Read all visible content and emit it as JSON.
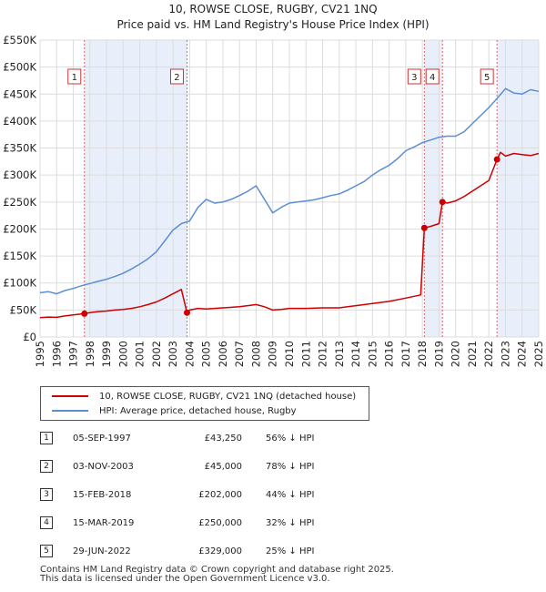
{
  "chart_data": {
    "type": "line",
    "title": "10, ROWSE CLOSE, RUGBY, CV21 1NQ",
    "subtitle": "Price paid vs. HM Land Registry's House Price Index (HPI)",
    "xlabel": "",
    "ylabel": "",
    "xlim": [
      1995,
      2025
    ],
    "ylim": [
      0,
      550000
    ],
    "x_ticks": [
      "1995",
      "1996",
      "1997",
      "1998",
      "1999",
      "2000",
      "2001",
      "2002",
      "2003",
      "2004",
      "2005",
      "2006",
      "2007",
      "2008",
      "2009",
      "2010",
      "2011",
      "2012",
      "2013",
      "2014",
      "2015",
      "2016",
      "2017",
      "2018",
      "2019",
      "2020",
      "2021",
      "2022",
      "2023",
      "2024",
      "2025"
    ],
    "y_ticks": [
      {
        "value": 0,
        "label": "£0"
      },
      {
        "value": 50000,
        "label": "£50K"
      },
      {
        "value": 100000,
        "label": "£100K"
      },
      {
        "value": 150000,
        "label": "£150K"
      },
      {
        "value": 200000,
        "label": "£200K"
      },
      {
        "value": 250000,
        "label": "£250K"
      },
      {
        "value": 300000,
        "label": "£300K"
      },
      {
        "value": 350000,
        "label": "£350K"
      },
      {
        "value": 400000,
        "label": "£400K"
      },
      {
        "value": 450000,
        "label": "£450K"
      },
      {
        "value": 500000,
        "label": "£500K"
      },
      {
        "value": 550000,
        "label": "£550K"
      }
    ],
    "series": [
      {
        "name": "10, ROWSE CLOSE, RUGBY, CV21 1NQ (detached house)",
        "color": "#cc0000",
        "x": [
          1995.0,
          1995.5,
          1996.0,
          1996.5,
          1997.0,
          1997.67,
          1998.0,
          1998.5,
          1999.0,
          1999.5,
          2000.0,
          2000.5,
          2001.0,
          2001.5,
          2002.0,
          2002.5,
          2003.0,
          2003.5,
          2003.84,
          2004.0,
          2004.5,
          2005.0,
          2006.0,
          2007.0,
          2007.5,
          2008.0,
          2008.5,
          2009.0,
          2009.5,
          2010.0,
          2011.0,
          2012.0,
          2013.0,
          2014.0,
          2015.0,
          2016.0,
          2017.0,
          2017.9,
          2018.12,
          2018.5,
          2019.0,
          2019.21,
          2019.5,
          2020.0,
          2020.5,
          2021.0,
          2021.5,
          2022.0,
          2022.49,
          2022.7,
          2023.0,
          2023.5,
          2024.0,
          2024.5,
          2025.0
        ],
        "values": [
          36000,
          37000,
          36500,
          39000,
          41000,
          43250,
          45000,
          47000,
          48000,
          50000,
          51000,
          53000,
          56000,
          60000,
          65000,
          72000,
          80000,
          88000,
          45000,
          50000,
          53000,
          52000,
          54000,
          56000,
          58000,
          60000,
          56000,
          50000,
          51000,
          53000,
          53000,
          54000,
          54000,
          58000,
          62000,
          66000,
          72000,
          78000,
          202000,
          205000,
          210000,
          250000,
          248000,
          252000,
          260000,
          270000,
          280000,
          290000,
          329000,
          342000,
          335000,
          340000,
          338000,
          336000,
          340000
        ]
      },
      {
        "name": "HPI: Average price, detached house, Rugby",
        "color": "#5b8fd1",
        "x": [
          1995.0,
          1995.5,
          1996.0,
          1996.5,
          1997.0,
          1997.5,
          1998.0,
          1998.5,
          1999.0,
          1999.5,
          2000.0,
          2000.5,
          2001.0,
          2001.5,
          2002.0,
          2002.5,
          2003.0,
          2003.5,
          2004.0,
          2004.5,
          2005.0,
          2005.5,
          2006.0,
          2006.5,
          2007.0,
          2007.5,
          2008.0,
          2008.5,
          2009.0,
          2009.5,
          2010.0,
          2010.5,
          2011.0,
          2011.5,
          2012.0,
          2012.5,
          2013.0,
          2013.5,
          2014.0,
          2014.5,
          2015.0,
          2015.5,
          2016.0,
          2016.5,
          2017.0,
          2017.5,
          2018.0,
          2018.5,
          2019.0,
          2019.5,
          2020.0,
          2020.5,
          2021.0,
          2021.5,
          2022.0,
          2022.5,
          2023.0,
          2023.5,
          2024.0,
          2024.5,
          2025.0
        ],
        "values": [
          82000,
          84000,
          80000,
          86000,
          90000,
          95000,
          99000,
          103000,
          107000,
          112000,
          118000,
          126000,
          135000,
          145000,
          158000,
          178000,
          198000,
          210000,
          215000,
          240000,
          255000,
          248000,
          250000,
          255000,
          262000,
          270000,
          280000,
          255000,
          230000,
          240000,
          248000,
          250000,
          252000,
          254000,
          258000,
          262000,
          265000,
          272000,
          280000,
          288000,
          300000,
          310000,
          318000,
          330000,
          345000,
          352000,
          360000,
          365000,
          370000,
          372000,
          372000,
          380000,
          395000,
          410000,
          425000,
          442000,
          460000,
          452000,
          450000,
          458000,
          455000
        ]
      }
    ],
    "markers": [
      {
        "id": "1",
        "x": 1997.67,
        "value": 43250
      },
      {
        "id": "2",
        "x": 2003.84,
        "value": 45000
      },
      {
        "id": "3",
        "x": 2018.12,
        "value": 202000
      },
      {
        "id": "4",
        "x": 2019.21,
        "value": 250000
      },
      {
        "id": "5",
        "x": 2022.49,
        "value": 329000
      }
    ],
    "colors": {
      "shade": "#e8effa",
      "vline": "#dd6666",
      "grid": "#dcdcdc",
      "red": "#cc0000",
      "blue": "#5b8fd1"
    }
  },
  "legend": {
    "items": [
      {
        "label": "10, ROWSE CLOSE, RUGBY, CV21 1NQ (detached house)",
        "color": "#cc0000"
      },
      {
        "label": "HPI: Average price, detached house, Rugby",
        "color": "#5b8fd1"
      }
    ]
  },
  "transactions": [
    {
      "id": "1",
      "date": "05-SEP-1997",
      "price": "£43,250",
      "hpi": "56% ↓ HPI"
    },
    {
      "id": "2",
      "date": "03-NOV-2003",
      "price": "£45,000",
      "hpi": "78% ↓ HPI"
    },
    {
      "id": "3",
      "date": "15-FEB-2018",
      "price": "£202,000",
      "hpi": "44% ↓ HPI"
    },
    {
      "id": "4",
      "date": "15-MAR-2019",
      "price": "£250,000",
      "hpi": "32% ↓ HPI"
    },
    {
      "id": "5",
      "date": "29-JUN-2022",
      "price": "£329,000",
      "hpi": "25% ↓ HPI"
    }
  ],
  "footer": {
    "line1": "Contains HM Land Registry data © Crown copyright and database right 2025.",
    "line2": "This data is licensed under the Open Government Licence v3.0."
  }
}
